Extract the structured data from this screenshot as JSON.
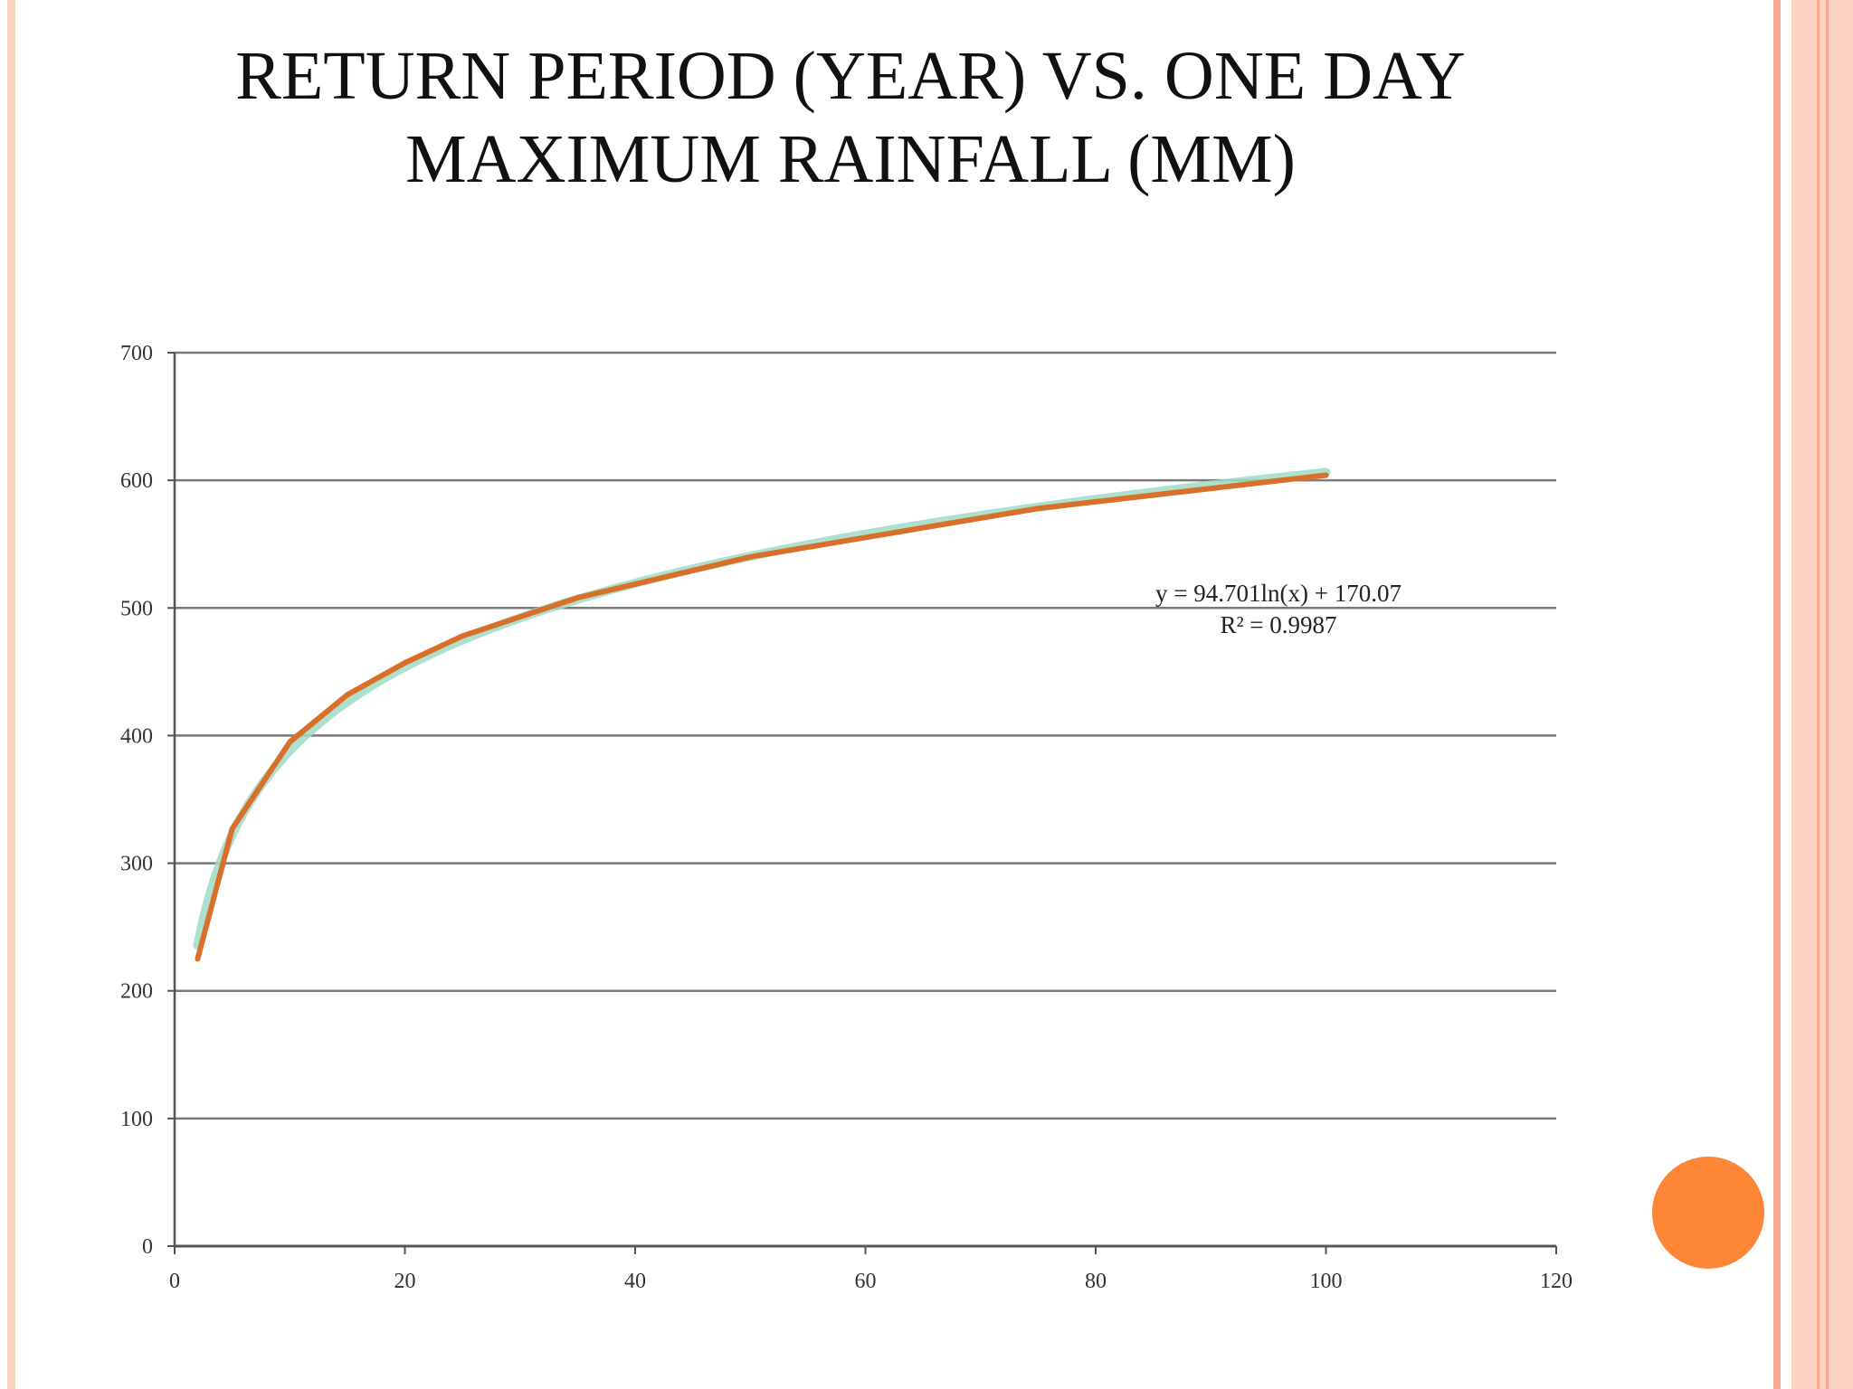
{
  "title": {
    "line1": "RETURN PERIOD (YEAR) VS. ONE DAY",
    "line2": "MAXIMUM RAINFALL (MM)"
  },
  "colors": {
    "frame_light": "#fcd3c1",
    "frame_dark": "#f8a88f",
    "accent_circle": "#fe8637",
    "series_line": "#d9702a",
    "trendline": "#9fdcc4",
    "gridline": "#7a7a7a",
    "axis": "#555555"
  },
  "chart_data": {
    "type": "line",
    "title": "",
    "xlabel": "",
    "ylabel": "",
    "xlim": [
      0,
      120
    ],
    "ylim": [
      0,
      700
    ],
    "xticks": [
      "0",
      "20",
      "40",
      "60",
      "80",
      "100",
      "120"
    ],
    "yticks": [
      "0",
      "100",
      "200",
      "300",
      "400",
      "500",
      "600",
      "700"
    ],
    "grid": "horizontal",
    "series": [
      {
        "x": [
          2,
          5,
          10,
          15,
          20,
          25,
          35,
          50,
          75,
          100
        ],
        "y": [
          225,
          327,
          395,
          432,
          457,
          478,
          508,
          540,
          578,
          604
        ]
      }
    ],
    "trendline": {
      "type": "logarithmic",
      "a": 94.701,
      "b": 170.07,
      "x_from": 2,
      "x_to": 100,
      "equation": "y = 94.701ln(x) + 170.07",
      "r_squared": "R² = 0.9987"
    }
  }
}
